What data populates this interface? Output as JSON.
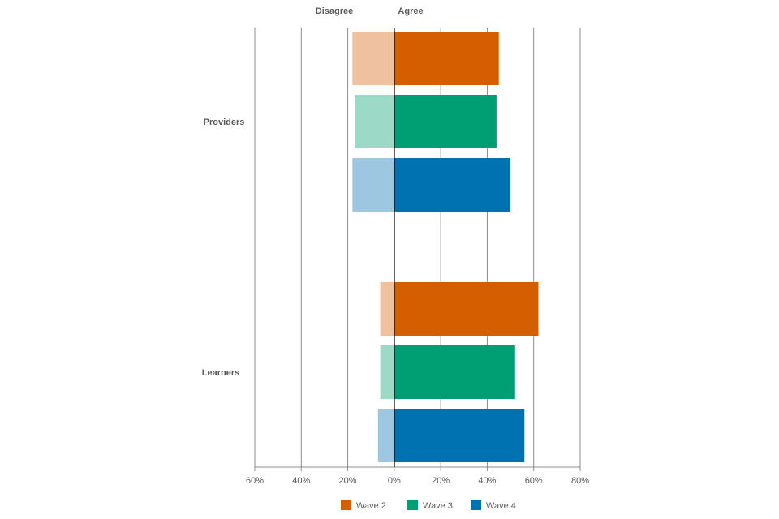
{
  "chart_data": {
    "type": "bar",
    "orientation": "horizontal-diverging",
    "headers": {
      "left": "Disagree",
      "right": "Agree"
    },
    "categories": [
      "Providers",
      "Learners"
    ],
    "series": [
      {
        "name": "Wave 2",
        "agree": [
          45,
          62
        ],
        "disagree": [
          18,
          6
        ],
        "color": "#D55E00",
        "light_color": "#F0C19E"
      },
      {
        "name": "Wave 3",
        "agree": [
          44,
          52
        ],
        "disagree": [
          17,
          6
        ],
        "color": "#009E73",
        "light_color": "#9CD9C7"
      },
      {
        "name": "Wave 4",
        "agree": [
          50,
          56
        ],
        "disagree": [
          18,
          7
        ],
        "color": "#0072B2",
        "light_color": "#9DC7E0"
      }
    ],
    "xlim": [
      -60,
      80
    ],
    "xticks": [
      -60,
      -40,
      -20,
      0,
      20,
      40,
      60,
      80
    ],
    "xtick_labels": [
      "60%",
      "40%",
      "20%",
      "0%",
      "20%",
      "40%",
      "60%",
      "80%"
    ],
    "grid": "vertical",
    "legend": "bottom"
  }
}
